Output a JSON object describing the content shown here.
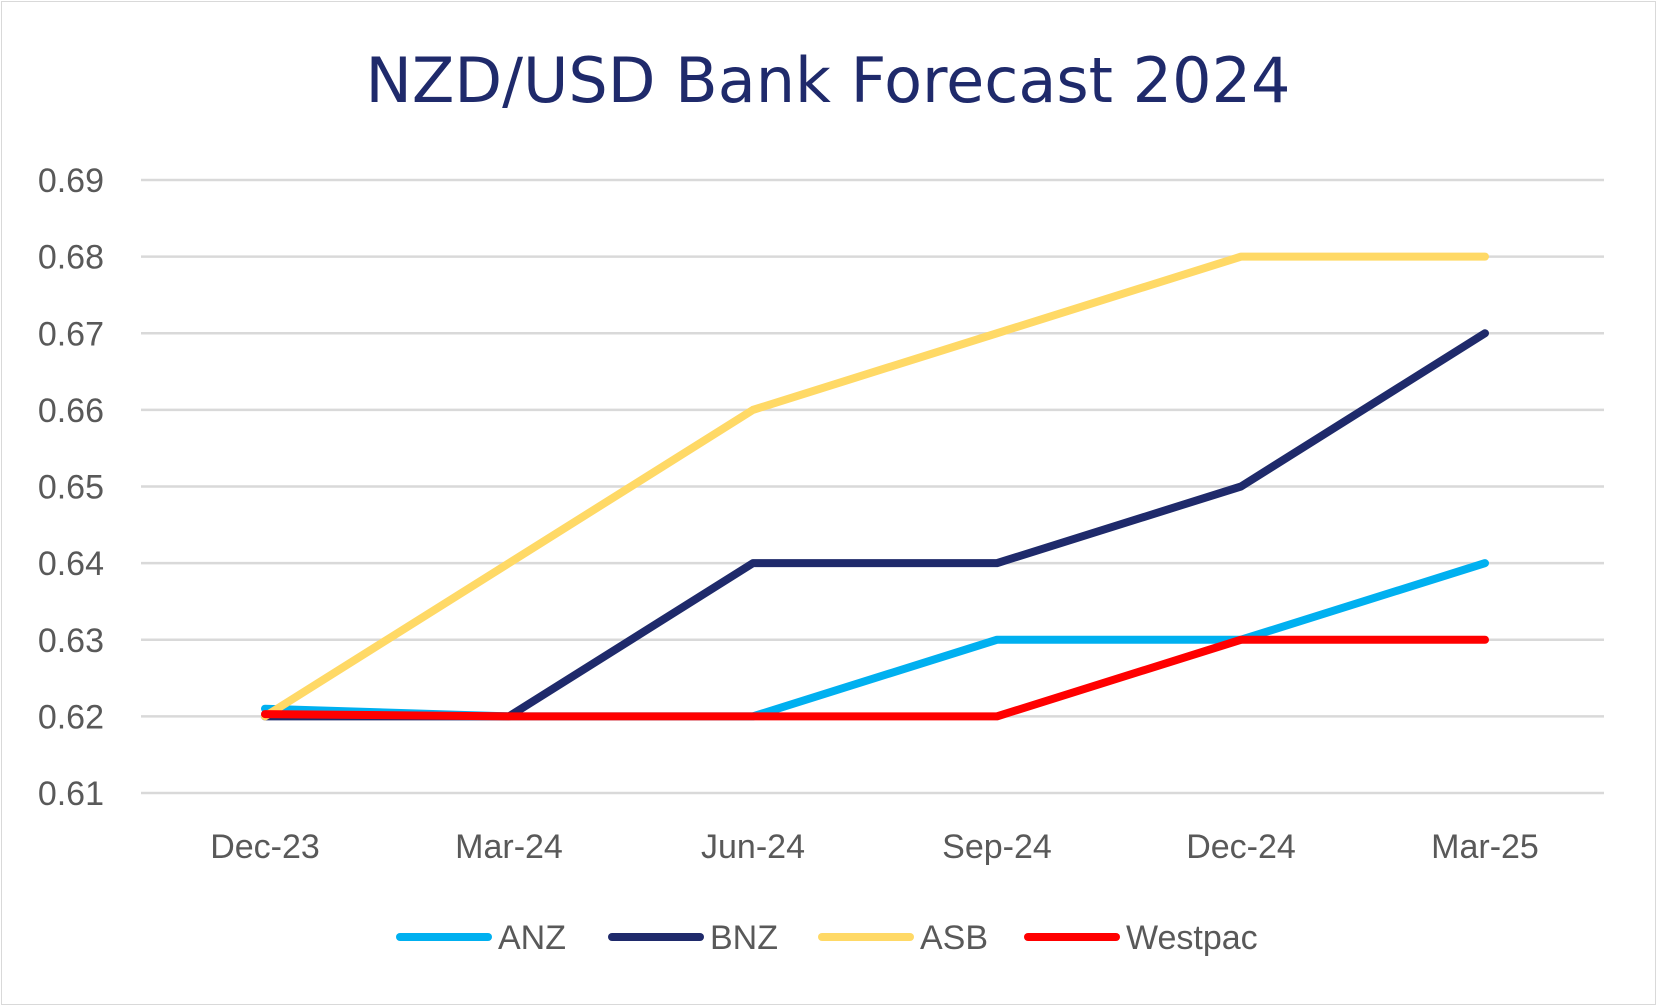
{
  "chart_data": {
    "type": "line",
    "title": "NZD/USD Bank Forecast 2024",
    "xlabel": "",
    "ylabel": "",
    "categories": [
      "Dec-23",
      "Mar-24",
      "Jun-24",
      "Sep-24",
      "Dec-24",
      "Mar-25"
    ],
    "ylim": [
      0.61,
      0.69
    ],
    "yticks": [
      "0.61",
      "0.62",
      "0.63",
      "0.64",
      "0.65",
      "0.66",
      "0.67",
      "0.68",
      "0.69"
    ],
    "grid": true,
    "legend_position": "bottom",
    "series": [
      {
        "name": "ANZ",
        "color": "#00b0f0",
        "values": [
          0.621,
          0.62,
          0.62,
          0.63,
          0.63,
          0.64
        ]
      },
      {
        "name": "BNZ",
        "color": "#1f2a6b",
        "values": [
          0.62,
          0.62,
          0.64,
          0.64,
          0.65,
          0.67
        ]
      },
      {
        "name": "ASB",
        "color": "#ffd966",
        "values": [
          0.62,
          0.64,
          0.66,
          0.67,
          0.68,
          0.68
        ]
      },
      {
        "name": "Westpac",
        "color": "#ff0000",
        "values": [
          0.6203,
          0.62,
          0.62,
          0.62,
          0.63,
          0.63
        ]
      }
    ]
  }
}
